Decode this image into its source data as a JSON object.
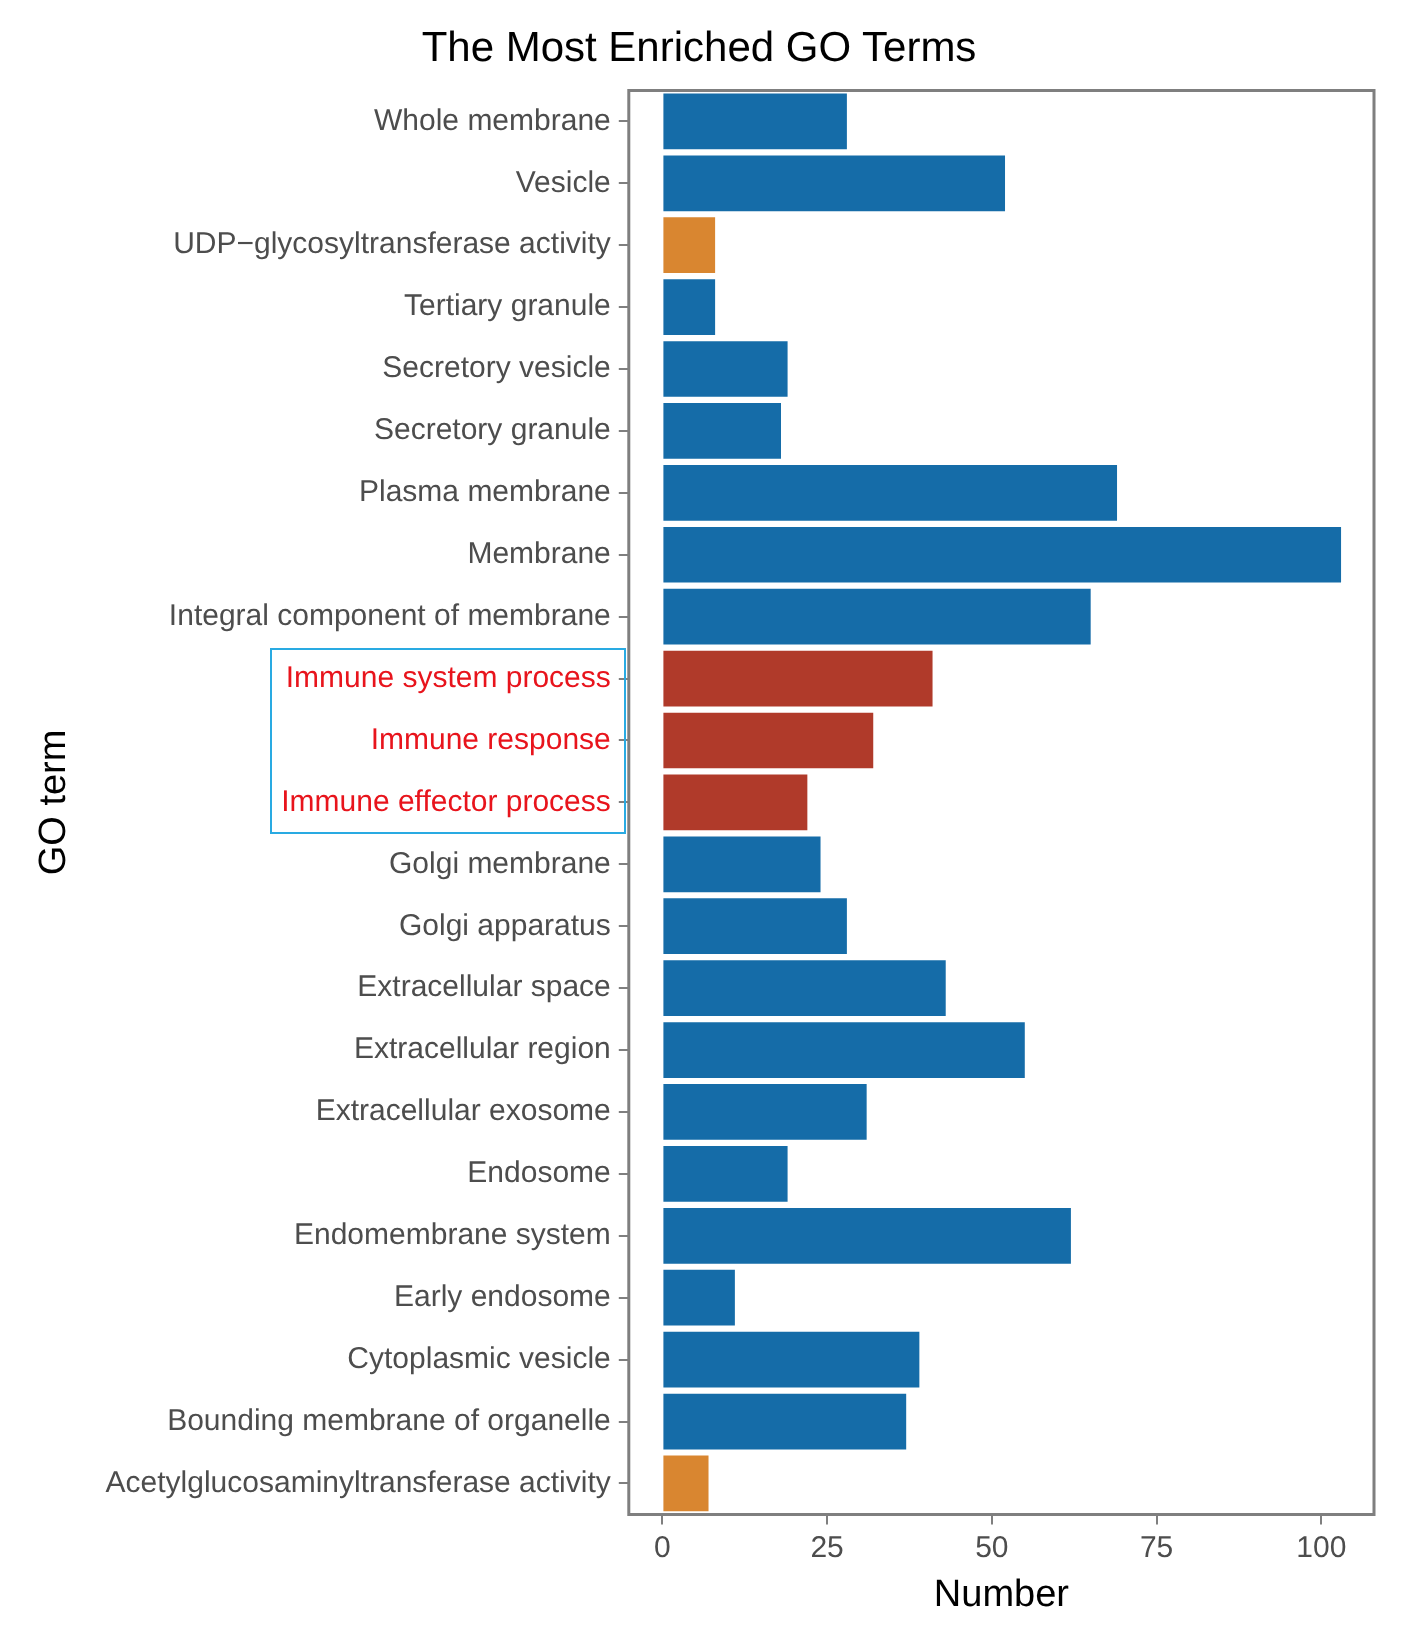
{
  "chart_data": {
    "type": "bar",
    "orientation": "horizontal",
    "title": "The Most Enriched GO Terms",
    "xlabel": "Number",
    "ylabel": "GO term",
    "categories": [
      "Whole membrane",
      "Vesicle",
      "UDP−glycosyltransferase activity",
      "Tertiary granule",
      "Secretory vesicle",
      "Secretory granule",
      "Plasma membrane",
      "Membrane",
      "Integral component of membrane",
      "Immune system process",
      "Immune response",
      "Immune effector process",
      "Golgi membrane",
      "Golgi apparatus",
      "Extracellular space",
      "Extracellular region",
      "Extracellular exosome",
      "Endosome",
      "Endomembrane system",
      "Early endosome",
      "Cytoplasmic vesicle",
      "Bounding membrane of organelle",
      "Acetylglucosaminyltransferase activity"
    ],
    "values": [
      28,
      52,
      8,
      8,
      19,
      18,
      69,
      103,
      65,
      41,
      32,
      22,
      24,
      28,
      43,
      55,
      31,
      19,
      62,
      11,
      39,
      37,
      7
    ],
    "colors": [
      "#156ca8",
      "#156ca8",
      "#d98630",
      "#156ca8",
      "#156ca8",
      "#156ca8",
      "#156ca8",
      "#156ca8",
      "#156ca8",
      "#b03a2a",
      "#b03a2a",
      "#b03a2a",
      "#156ca8",
      "#156ca8",
      "#156ca8",
      "#156ca8",
      "#156ca8",
      "#156ca8",
      "#156ca8",
      "#156ca8",
      "#156ca8",
      "#156ca8",
      "#d98630"
    ],
    "xlim": [
      -5.1,
      108
    ],
    "xticks": [
      0,
      25,
      50,
      75,
      100
    ],
    "grid": false,
    "legend": false
  }
}
